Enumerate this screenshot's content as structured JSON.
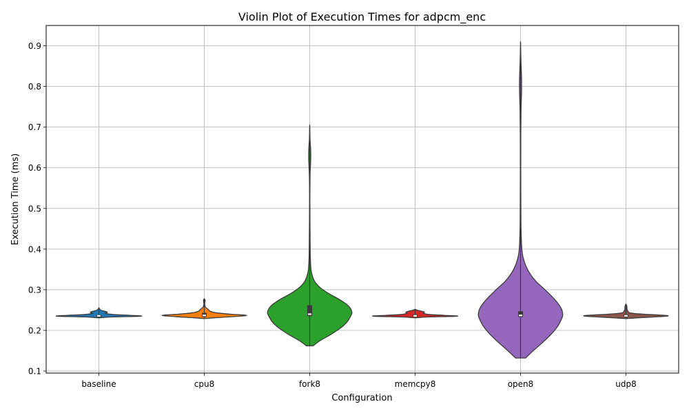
{
  "chart_data": {
    "type": "violin",
    "title": "Violin Plot of Execution Times for adpcm_enc",
    "xlabel": "Configuration",
    "ylabel": "Execution Time (ms)",
    "ylim": [
      0.095,
      0.95
    ],
    "yticks": [
      "0.1",
      "0.2",
      "0.3",
      "0.4",
      "0.5",
      "0.6",
      "0.7",
      "0.8",
      "0.9"
    ],
    "grid": true,
    "legend": "none",
    "categories": [
      "baseline",
      "cpu8",
      "fork8",
      "memcpy8",
      "open8",
      "udp8"
    ],
    "series": [
      {
        "color": "#1f77b4",
        "min": 0.231,
        "max": 0.256,
        "q1": 0.234,
        "median": 0.236,
        "q3": 0.238,
        "profile": [
          [
            0.231,
            0.02
          ],
          [
            0.233,
            0.3
          ],
          [
            0.235,
            1.0
          ],
          [
            0.237,
            0.75
          ],
          [
            0.239,
            0.35
          ],
          [
            0.242,
            0.15
          ],
          [
            0.244,
            0.2
          ],
          [
            0.246,
            0.18
          ],
          [
            0.249,
            0.06
          ],
          [
            0.252,
            0.02
          ],
          [
            0.256,
            0.0
          ]
        ]
      },
      {
        "color": "#ff7f0e",
        "min": 0.229,
        "max": 0.278,
        "q1": 0.233,
        "median": 0.237,
        "q3": 0.243,
        "profile": [
          [
            0.229,
            0.0
          ],
          [
            0.231,
            0.25
          ],
          [
            0.234,
            0.7
          ],
          [
            0.237,
            1.0
          ],
          [
            0.24,
            0.6
          ],
          [
            0.243,
            0.3
          ],
          [
            0.247,
            0.14
          ],
          [
            0.252,
            0.09
          ],
          [
            0.257,
            0.03
          ],
          [
            0.265,
            0.01
          ],
          [
            0.27,
            0.015
          ],
          [
            0.274,
            0.02
          ],
          [
            0.278,
            0.0
          ]
        ]
      },
      {
        "color": "#2ca02c",
        "min": 0.162,
        "max": 0.705,
        "q1": 0.235,
        "median": 0.24,
        "q3": 0.262,
        "profile": [
          [
            0.162,
            0.08
          ],
          [
            0.175,
            0.25
          ],
          [
            0.19,
            0.5
          ],
          [
            0.205,
            0.72
          ],
          [
            0.22,
            0.88
          ],
          [
            0.235,
            0.97
          ],
          [
            0.245,
            1.0
          ],
          [
            0.26,
            0.92
          ],
          [
            0.275,
            0.72
          ],
          [
            0.29,
            0.46
          ],
          [
            0.305,
            0.25
          ],
          [
            0.32,
            0.12
          ],
          [
            0.335,
            0.06
          ],
          [
            0.35,
            0.03
          ],
          [
            0.38,
            0.015
          ],
          [
            0.42,
            0.01
          ],
          [
            0.47,
            0.006
          ],
          [
            0.53,
            0.004
          ],
          [
            0.58,
            0.008
          ],
          [
            0.61,
            0.02
          ],
          [
            0.63,
            0.025
          ],
          [
            0.65,
            0.02
          ],
          [
            0.67,
            0.008
          ],
          [
            0.705,
            0.0
          ]
        ]
      },
      {
        "color": "#d62728",
        "min": 0.231,
        "max": 0.252,
        "q1": 0.234,
        "median": 0.236,
        "q3": 0.239,
        "profile": [
          [
            0.231,
            0.02
          ],
          [
            0.233,
            0.3
          ],
          [
            0.235,
            1.0
          ],
          [
            0.237,
            0.7
          ],
          [
            0.239,
            0.35
          ],
          [
            0.242,
            0.2
          ],
          [
            0.245,
            0.22
          ],
          [
            0.248,
            0.12
          ],
          [
            0.25,
            0.04
          ],
          [
            0.252,
            0.0
          ]
        ]
      },
      {
        "color": "#9467bd",
        "min": 0.132,
        "max": 0.91,
        "q1": 0.233,
        "median": 0.237,
        "q3": 0.247,
        "profile": [
          [
            0.132,
            0.12
          ],
          [
            0.15,
            0.3
          ],
          [
            0.17,
            0.52
          ],
          [
            0.19,
            0.72
          ],
          [
            0.21,
            0.88
          ],
          [
            0.23,
            0.98
          ],
          [
            0.24,
            1.0
          ],
          [
            0.255,
            0.96
          ],
          [
            0.275,
            0.82
          ],
          [
            0.3,
            0.58
          ],
          [
            0.32,
            0.37
          ],
          [
            0.34,
            0.22
          ],
          [
            0.36,
            0.12
          ],
          [
            0.38,
            0.06
          ],
          [
            0.4,
            0.03
          ],
          [
            0.45,
            0.012
          ],
          [
            0.5,
            0.008
          ],
          [
            0.6,
            0.005
          ],
          [
            0.68,
            0.006
          ],
          [
            0.74,
            0.012
          ],
          [
            0.78,
            0.022
          ],
          [
            0.81,
            0.025
          ],
          [
            0.84,
            0.018
          ],
          [
            0.87,
            0.008
          ],
          [
            0.91,
            0.0
          ]
        ]
      },
      {
        "color": "#8c564b",
        "min": 0.229,
        "max": 0.265,
        "q1": 0.233,
        "median": 0.236,
        "q3": 0.239,
        "profile": [
          [
            0.229,
            0.0
          ],
          [
            0.231,
            0.3
          ],
          [
            0.234,
            0.85
          ],
          [
            0.236,
            1.0
          ],
          [
            0.238,
            0.75
          ],
          [
            0.24,
            0.4
          ],
          [
            0.243,
            0.1
          ],
          [
            0.247,
            0.05
          ],
          [
            0.25,
            0.03
          ],
          [
            0.255,
            0.025
          ],
          [
            0.26,
            0.02
          ],
          [
            0.265,
            0.0
          ]
        ]
      }
    ]
  }
}
